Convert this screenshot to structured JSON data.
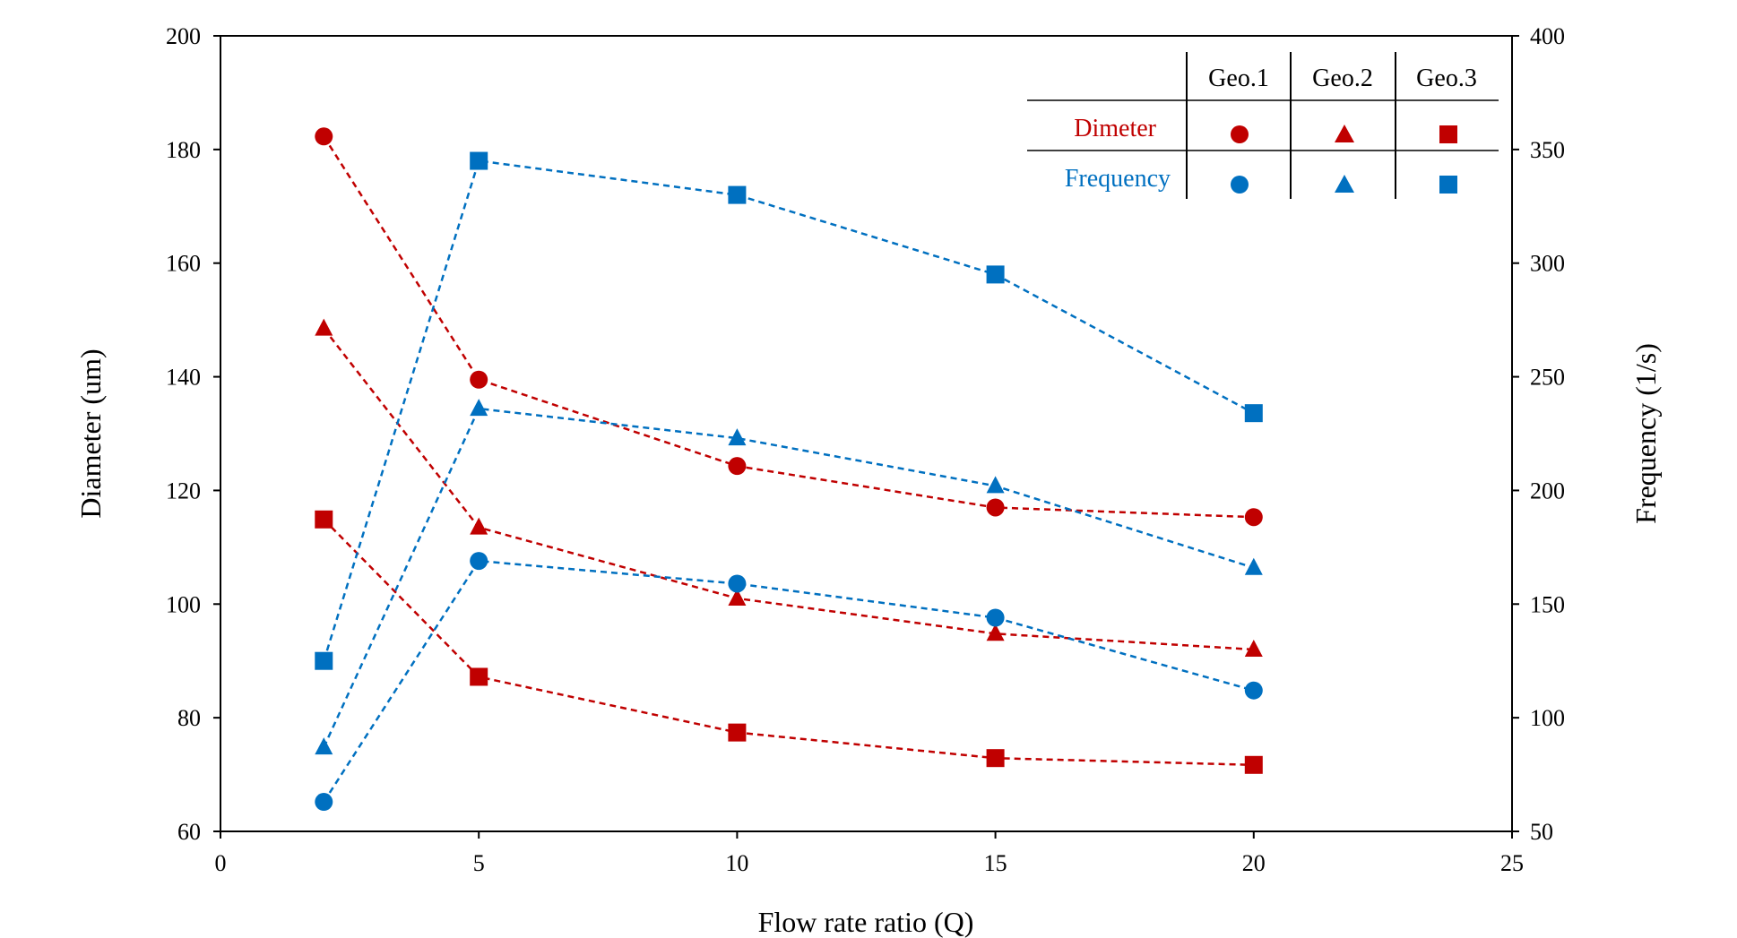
{
  "chart_data": {
    "type": "line",
    "title": "",
    "xlabel": "Flow rate ratio (Q)",
    "ylabel": "Diameter (um)",
    "y2label": "Frequency (1/s)",
    "xlim": [
      0,
      25
    ],
    "ylim": [
      60,
      200
    ],
    "y2lim": [
      50,
      400
    ],
    "x_ticks": [
      "0",
      "5",
      "10",
      "15",
      "20",
      "25"
    ],
    "y_ticks": [
      "60",
      "80",
      "100",
      "120",
      "140",
      "160",
      "180",
      "200"
    ],
    "y2_ticks": [
      "50",
      "100",
      "150",
      "200",
      "250",
      "300",
      "350",
      "400"
    ],
    "grid": false,
    "line_style": "dashed",
    "colors": {
      "diameter": "#c00000",
      "frequency": "#0070c0"
    },
    "x": [
      2,
      5,
      10,
      15,
      20
    ],
    "series": [
      {
        "group": "Dimeter",
        "geo": "Geo.1",
        "marker": "circle",
        "axis": "left",
        "color": "#c00000",
        "values": [
          182.3,
          139.5,
          124.3,
          117.0,
          115.3
        ]
      },
      {
        "group": "Dimeter",
        "geo": "Geo.2",
        "marker": "triangle",
        "axis": "left",
        "color": "#c00000",
        "values": [
          148.5,
          113.5,
          101.0,
          94.8,
          92.0
        ]
      },
      {
        "group": "Dimeter",
        "geo": "Geo.3",
        "marker": "square",
        "axis": "left",
        "color": "#c00000",
        "values": [
          114.9,
          87.2,
          77.4,
          72.9,
          71.7
        ]
      },
      {
        "group": "Frequency",
        "geo": "Geo.1",
        "marker": "circle",
        "axis": "right",
        "color": "#0070c0",
        "values": [
          63,
          169,
          159,
          144,
          112
        ]
      },
      {
        "group": "Frequency",
        "geo": "Geo.2",
        "marker": "triangle",
        "axis": "right",
        "color": "#0070c0",
        "values": [
          87,
          236,
          223,
          202,
          166
        ]
      },
      {
        "group": "Frequency",
        "geo": "Geo.3",
        "marker": "square",
        "axis": "right",
        "color": "#0070c0",
        "values": [
          125,
          345,
          330,
          295,
          234
        ]
      }
    ],
    "legend": {
      "placement": "top-right",
      "columns": [
        "Geo.1",
        "Geo.2",
        "Geo.3"
      ],
      "rows": [
        "Dimeter",
        "Frequency"
      ]
    }
  }
}
